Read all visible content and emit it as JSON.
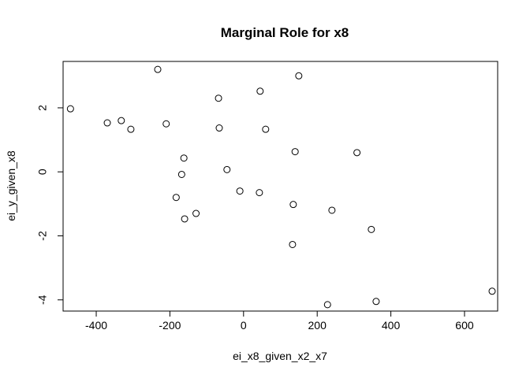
{
  "chart_data": {
    "type": "scatter",
    "title": "Marginal Role for x8",
    "xlabel": "ei_x8_given_x2_x7",
    "ylabel": "ei_y_given_x8",
    "xlim": [
      -490,
      690
    ],
    "ylim": [
      -4.35,
      3.45
    ],
    "xticks": [
      -400,
      -200,
      0,
      200,
      400,
      600
    ],
    "xtick_labels": [
      "-400",
      "-200",
      "0",
      "200",
      "400",
      "600"
    ],
    "yticks": [
      -4,
      -2,
      0,
      2
    ],
    "ytick_labels": [
      "-4",
      "-2",
      "0",
      "2"
    ],
    "grid": false,
    "points": [
      {
        "x": -470,
        "y": 1.97
      },
      {
        "x": -370,
        "y": 1.53
      },
      {
        "x": -332,
        "y": 1.6
      },
      {
        "x": -306,
        "y": 1.33
      },
      {
        "x": -233,
        "y": 3.2
      },
      {
        "x": -210,
        "y": 1.5
      },
      {
        "x": -183,
        "y": -0.8
      },
      {
        "x": -168,
        "y": -0.08
      },
      {
        "x": -162,
        "y": 0.43
      },
      {
        "x": -160,
        "y": -1.47
      },
      {
        "x": -129,
        "y": -1.3
      },
      {
        "x": -68,
        "y": 2.3
      },
      {
        "x": -66,
        "y": 1.37
      },
      {
        "x": -45,
        "y": 0.07
      },
      {
        "x": -10,
        "y": -0.6
      },
      {
        "x": 43,
        "y": -0.65
      },
      {
        "x": 45,
        "y": 2.52
      },
      {
        "x": 60,
        "y": 1.33
      },
      {
        "x": 133,
        "y": -2.27
      },
      {
        "x": 135,
        "y": -1.02
      },
      {
        "x": 140,
        "y": 0.63
      },
      {
        "x": 150,
        "y": 3.0
      },
      {
        "x": 228,
        "y": -4.15
      },
      {
        "x": 240,
        "y": -1.2
      },
      {
        "x": 308,
        "y": 0.6
      },
      {
        "x": 347,
        "y": -1.8
      },
      {
        "x": 360,
        "y": -4.05
      },
      {
        "x": 675,
        "y": -3.73
      }
    ]
  }
}
